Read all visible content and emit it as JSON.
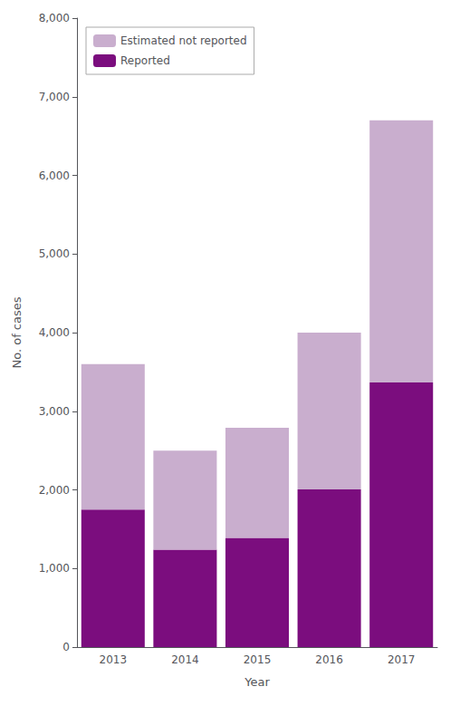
{
  "chart_data": {
    "type": "bar",
    "stacked": true,
    "categories": [
      "2013",
      "2014",
      "2015",
      "2016",
      "2017"
    ],
    "series": [
      {
        "name": "Reported",
        "color": "#7B0D7E",
        "values": [
          1750,
          1239,
          1390,
          2007,
          3366
        ]
      },
      {
        "name": "Estimated not reported",
        "color": "#C9AECE",
        "values": [
          1850,
          1261,
          1400,
          1993,
          3334
        ]
      }
    ],
    "xlabel": "Year",
    "ylabel": "No. of cases",
    "ylim": [
      0,
      8000
    ],
    "yticks": [
      0,
      {
        "value": 1000,
        "label": "1,000"
      },
      {
        "value": 2000,
        "label": "2,000"
      },
      {
        "value": 3000,
        "label": "3,000"
      },
      {
        "value": 4000,
        "label": "4,000"
      },
      {
        "value": 5000,
        "label": "5,000"
      },
      {
        "value": 6000,
        "label": "6,000"
      },
      {
        "value": 7000,
        "label": "7,000"
      },
      {
        "value": 8000,
        "label": "8,000"
      }
    ],
    "grid": false,
    "legend": "upper left"
  }
}
